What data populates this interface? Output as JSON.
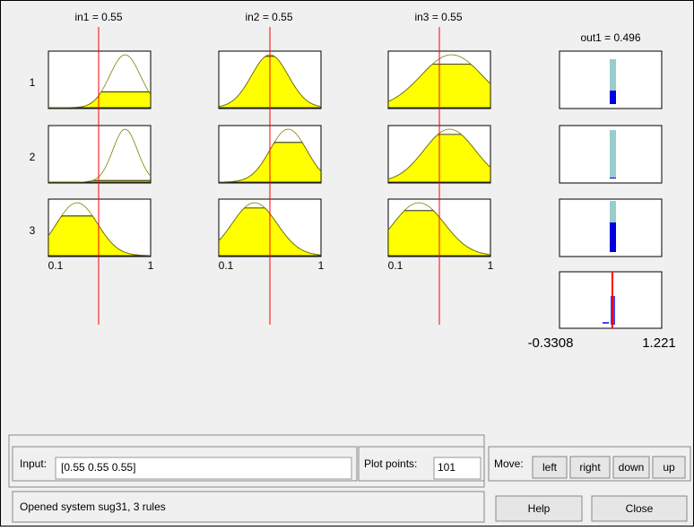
{
  "inputs": [
    {
      "label": "in1 = 0.55",
      "axis_min": "0.1",
      "axis_max": "1"
    },
    {
      "label": "in2 = 0.55",
      "axis_min": "0.1",
      "axis_max": "1"
    },
    {
      "label": "in3 = 0.55",
      "axis_min": "0.1",
      "axis_max": "1"
    }
  ],
  "output": {
    "label": "out1 = 0.496",
    "axis_min": "-0.3308",
    "axis_max": "1.221"
  },
  "rules": [
    "1",
    "2",
    "3"
  ],
  "controls": {
    "input_label": "Input:",
    "input_value": "[0.55 0.55 0.55]",
    "plot_points_label": "Plot points:",
    "plot_points_value": "101",
    "move_label": "Move:",
    "buttons": [
      "left",
      "right",
      "down",
      "up"
    ]
  },
  "status": "Opened system sug31, 3 rules",
  "help": "Help",
  "close": "Close"
}
